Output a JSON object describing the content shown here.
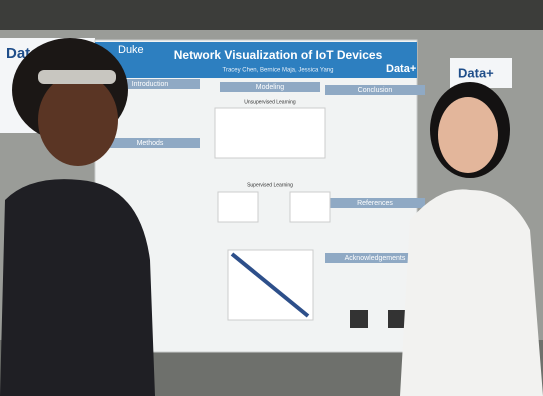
{
  "poster": {
    "institution": "Duke",
    "title": "Network Visualization of IoT Devices",
    "authors": "Tracey Chen, Bernice Maja, Jessica Yang",
    "logo": "Data+",
    "sections": [
      "Introduction",
      "Methods",
      "Modeling",
      "Conclusion",
      "References",
      "Acknowledgements"
    ],
    "subsections": [
      "Unsupervised Learning",
      "Supervised Learning"
    ]
  },
  "signs": [
    "Data+",
    "Data+"
  ]
}
